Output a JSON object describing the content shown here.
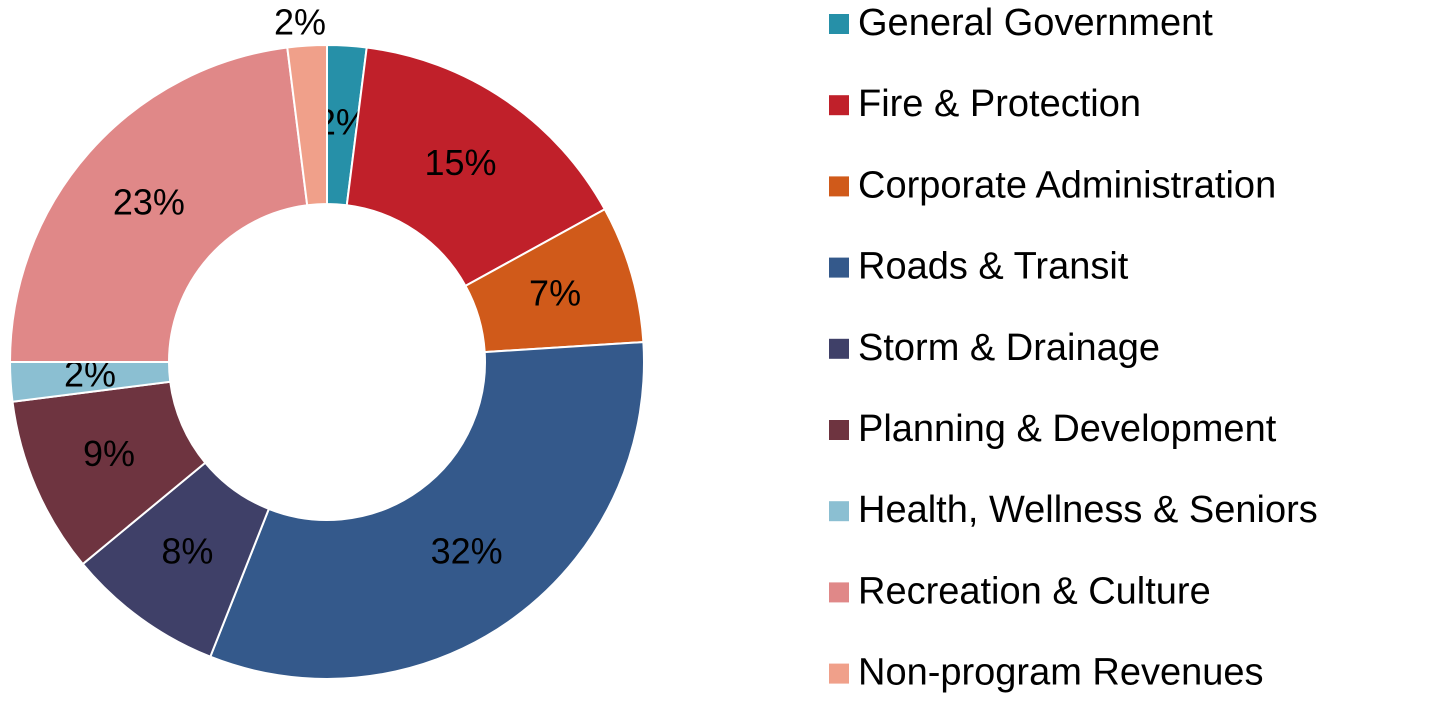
{
  "chart_data": {
    "type": "pie",
    "categories": [
      "General Government",
      "Fire & Protection",
      "Corporate Administration",
      "Roads & Transit",
      "Storm & Drainage",
      "Planning & Development",
      "Health, Wellness & Seniors",
      "Recreation & Culture",
      "Non-program Revenues"
    ],
    "values": [
      2,
      15,
      7,
      32,
      8,
      9,
      2,
      23,
      2
    ],
    "value_labels": [
      "2%",
      "15%",
      "7%",
      "32%",
      "8%",
      "9%",
      "2%",
      "23%",
      "2%"
    ],
    "colors": [
      "#2690a8",
      "#c0202a",
      "#d05a1a",
      "#34598b",
      "#3f4068",
      "#6e3440",
      "#8bbfd2",
      "#e08888",
      "#f0a08a"
    ],
    "legend": "right"
  }
}
